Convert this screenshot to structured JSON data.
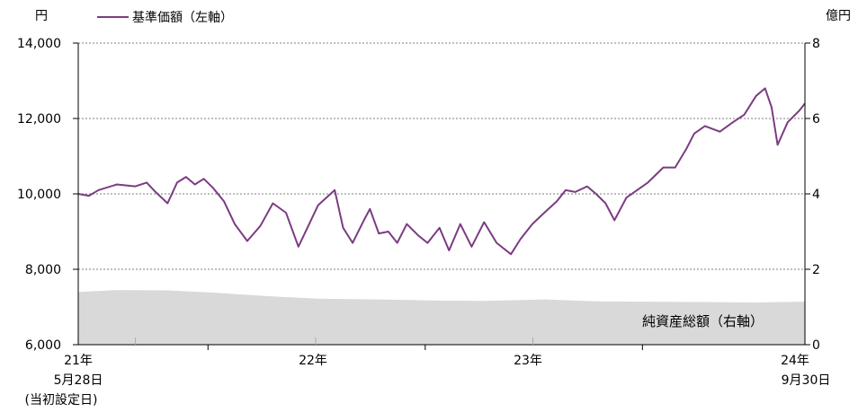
{
  "chart_data": {
    "type": "line",
    "left_unit": "円",
    "right_unit": "億円",
    "left_axis": {
      "ylim": [
        6000,
        14000
      ],
      "ticks": [
        "6,000",
        "8,000",
        "10,000",
        "12,000",
        "14,000"
      ]
    },
    "right_axis": {
      "ylim": [
        0,
        8
      ],
      "ticks": [
        "0",
        "2",
        "4",
        "6",
        "8"
      ]
    },
    "x_labels": [
      {
        "line1": "21年",
        "line2": "5月28日",
        "line3": "(当初設定日)"
      },
      {
        "line1": "22年"
      },
      {
        "line1": "23年"
      },
      {
        "line1": "24年",
        "line2": "9月30日"
      }
    ],
    "x_range": [
      "2021-05-28",
      "2024-09-30"
    ],
    "legend": [
      {
        "label": "基準価額（左軸）",
        "color": "#7b3c82"
      }
    ],
    "area_label": "純資産総額（右軸）",
    "colors": {
      "line": "#7b3c82",
      "area": "#d9d9d9",
      "grid": "#7f7f7f"
    },
    "grid": true,
    "series": [
      {
        "name": "基準価額（左軸）",
        "axis": "left",
        "x": [
          "2021-05-28",
          "2021-06-15",
          "2021-07-01",
          "2021-08-01",
          "2021-09-01",
          "2021-09-20",
          "2021-10-05",
          "2021-10-25",
          "2021-11-10",
          "2021-11-25",
          "2021-12-10",
          "2021-12-25",
          "2022-01-10",
          "2022-01-28",
          "2022-02-15",
          "2022-03-08",
          "2022-03-30",
          "2022-04-20",
          "2022-05-12",
          "2022-06-02",
          "2022-06-20",
          "2022-07-05",
          "2022-08-02",
          "2022-08-16",
          "2022-09-01",
          "2022-09-20",
          "2022-09-30",
          "2022-10-15",
          "2022-10-31",
          "2022-11-15",
          "2022-12-01",
          "2022-12-20",
          "2023-01-05",
          "2023-01-25",
          "2023-02-10",
          "2023-03-01",
          "2023-03-20",
          "2023-04-10",
          "2023-05-01",
          "2023-05-25",
          "2023-06-10",
          "2023-06-30",
          "2023-07-20",
          "2023-08-10",
          "2023-08-25",
          "2023-09-10",
          "2023-09-30",
          "2023-10-15",
          "2023-10-31",
          "2023-11-15",
          "2023-12-05",
          "2024-01-10",
          "2024-02-05",
          "2024-02-25",
          "2024-03-15",
          "2024-03-28",
          "2024-04-15",
          "2024-05-10",
          "2024-06-01",
          "2024-06-20",
          "2024-07-10",
          "2024-07-25",
          "2024-08-05",
          "2024-08-15",
          "2024-09-01",
          "2024-09-20",
          "2024-09-30"
        ],
        "values": [
          10000,
          9950,
          10100,
          10250,
          10200,
          10300,
          10050,
          9750,
          10300,
          10450,
          10250,
          10400,
          10150,
          9800,
          9200,
          8750,
          9150,
          9750,
          9500,
          8600,
          9200,
          9700,
          10100,
          9100,
          8700,
          9300,
          9600,
          8950,
          9000,
          8700,
          9200,
          8900,
          8700,
          9100,
          8500,
          9200,
          8600,
          9250,
          8700,
          8400,
          8800,
          9200,
          9500,
          9800,
          10100,
          10050,
          10200,
          10000,
          9750,
          9300,
          9900,
          10300,
          10700,
          10700,
          11200,
          11600,
          11800,
          11650,
          11900,
          12100,
          12600,
          12800,
          12300,
          11300,
          11900,
          12200,
          12400
        ]
      },
      {
        "name": "純資産総額（右軸）",
        "axis": "right",
        "x": [
          "2021-05-28",
          "2021-08-01",
          "2021-10-25",
          "2022-01-10",
          "2022-04-20",
          "2022-07-05",
          "2022-10-15",
          "2023-01-25",
          "2023-04-10",
          "2023-07-20",
          "2023-10-15",
          "2024-01-10",
          "2024-04-15",
          "2024-07-10",
          "2024-09-30"
        ],
        "values": [
          1.4,
          1.45,
          1.44,
          1.38,
          1.28,
          1.22,
          1.2,
          1.17,
          1.16,
          1.2,
          1.15,
          1.14,
          1.13,
          1.12,
          1.14
        ]
      }
    ]
  }
}
